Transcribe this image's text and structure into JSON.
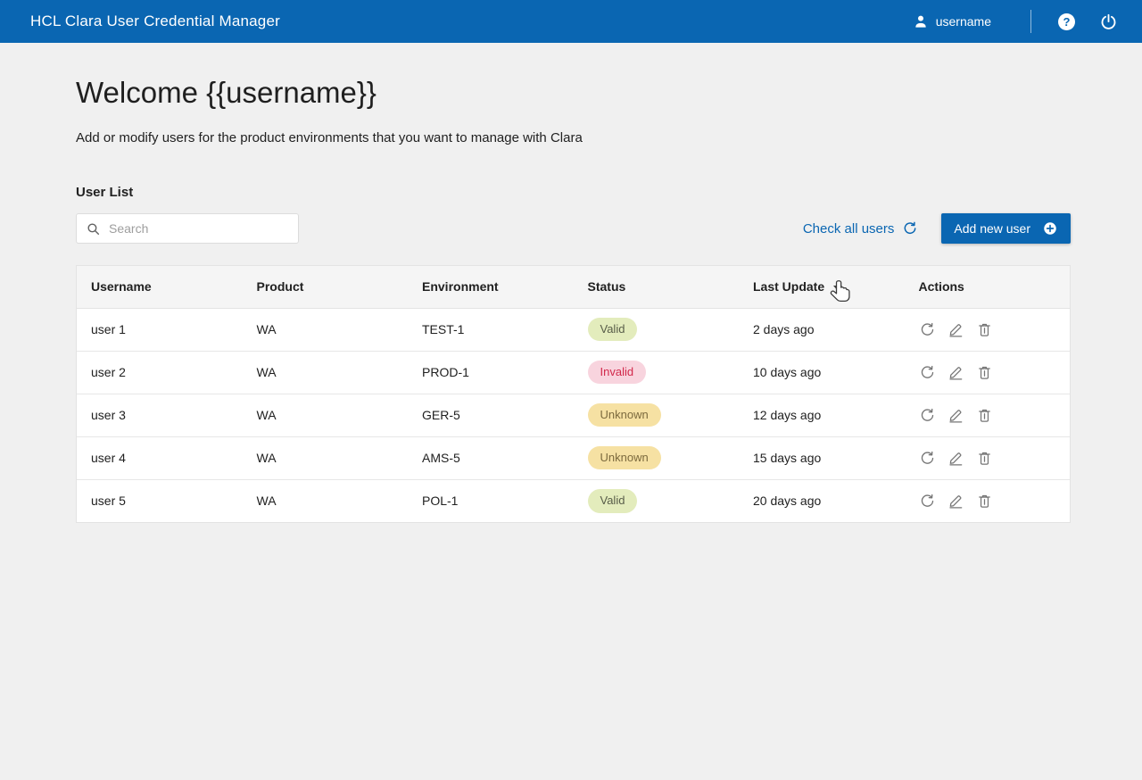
{
  "header": {
    "title": "HCL Clara User Credential Manager",
    "user_label": "username",
    "help_glyph": "?"
  },
  "page": {
    "welcome_title": "Welcome {{username}}",
    "subtitle": "Add or modify users for the product environments that you want to manage with Clara",
    "section_title": "User List"
  },
  "toolbar": {
    "search_placeholder": "Search",
    "check_all_label": "Check all users",
    "add_new_label": "Add new user"
  },
  "table": {
    "columns": [
      "Username",
      "Product",
      "Environment",
      "Status",
      "Last Update",
      "Actions"
    ],
    "sort": {
      "column": "Last Update",
      "direction": "desc"
    },
    "rows": [
      {
        "username": "user 1",
        "product": "WA",
        "environment": "TEST-1",
        "status": "Valid",
        "last_update": "2 days ago"
      },
      {
        "username": "user 2",
        "product": "WA",
        "environment": "PROD-1",
        "status": "Invalid",
        "last_update": "10 days ago"
      },
      {
        "username": "user 3",
        "product": "WA",
        "environment": "GER-5",
        "status": "Unknown",
        "last_update": "12 days ago"
      },
      {
        "username": "user 4",
        "product": "WA",
        "environment": "AMS-5",
        "status": "Unknown",
        "last_update": "15 days ago"
      },
      {
        "username": "user 5",
        "product": "WA",
        "environment": "POL-1",
        "status": "Valid",
        "last_update": "20 days ago"
      }
    ]
  },
  "status_colors": {
    "Valid": {
      "bg": "#e3ecbc",
      "text": "#585d49"
    },
    "Invalid": {
      "bg": "#f8d4de",
      "text": "#d2294b"
    },
    "Unknown": {
      "bg": "#f6e1a3",
      "text": "#7c6a3e"
    }
  },
  "colors": {
    "header_bg": "#0a66b2",
    "accent": "#0a66b2",
    "page_bg": "#f0f0f0"
  },
  "cursor": {
    "style": "hand-pointer"
  }
}
